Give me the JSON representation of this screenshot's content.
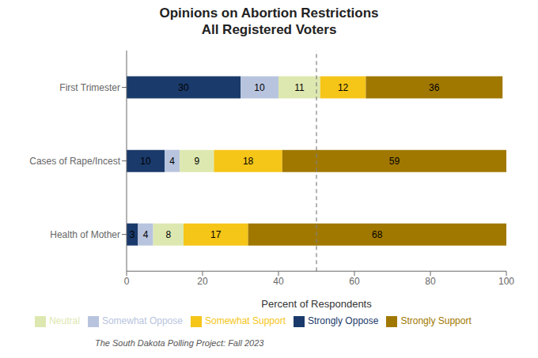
{
  "chart_data": {
    "type": "bar",
    "orientation": "horizontal",
    "stacked": true,
    "data_labels": true,
    "legend": "bottom",
    "grid": false,
    "title": "Opinions on Abortion Restrictions\nAll Registered Voters",
    "categories": [
      "Health of Mother",
      "Cases of Rape/Incest",
      "First Trimester"
    ],
    "series": [
      {
        "name": "Strongly Oppose",
        "color": "#1a3a6b",
        "values": [
          3,
          10,
          30
        ]
      },
      {
        "name": "Somewhat Oppose",
        "color": "#b8c4de",
        "values": [
          4,
          4,
          10
        ]
      },
      {
        "name": "Neutral",
        "color": "#dde8b0",
        "values": [
          8,
          9,
          11
        ]
      },
      {
        "name": "Somewhat Support",
        "color": "#f5c518",
        "values": [
          17,
          18,
          12
        ]
      },
      {
        "name": "Strongly Support",
        "color": "#a07800",
        "values": [
          68,
          59,
          36
        ]
      }
    ],
    "xlabel": "Percent of Respondents",
    "xlim": [
      0,
      100
    ],
    "xticks": [
      0,
      20,
      40,
      60,
      80,
      100
    ],
    "reference_line": 50,
    "footnote": "The South Dakota Polling Project: Fall 2023"
  }
}
